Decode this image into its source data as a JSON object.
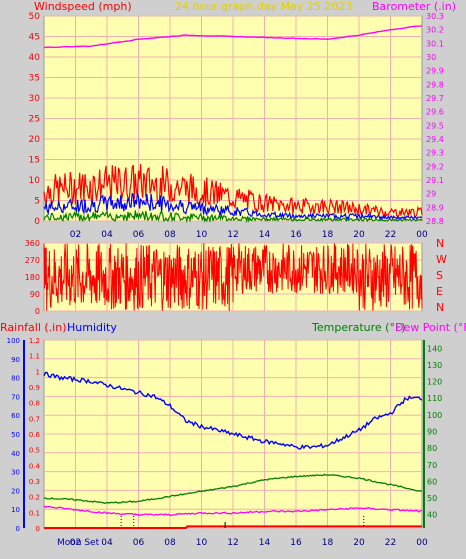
{
  "header": {
    "left_title": "Windspeed (mph)",
    "center_title": "24 hour graph day   May 25 2023",
    "right_title": "Barometer (.in)"
  },
  "bottom_header": {
    "left_title": "Rainfall (.in)",
    "humidity_title": "Humidity",
    "temp_title": "Temperature (°F)",
    "dew_title": "Dew Point (°F)"
  },
  "x_ticks": [
    "02",
    "04",
    "06",
    "08",
    "10",
    "12",
    "14",
    "16",
    "18",
    "20",
    "22",
    "00"
  ],
  "wind_dir_labels": [
    "N",
    "W",
    "S",
    "E",
    "N"
  ],
  "moon_label": "Moon Set",
  "colors": {
    "plot_bg": "#ffffb0",
    "frame_bg": "#cfcfcf",
    "wind_gust": "#ff0000",
    "wind_avg": "#0000ff",
    "wind_low": "#008000",
    "barometer": "#ff00ff",
    "wind_dir": "#ff0000",
    "humidity": "#0000ff",
    "temperature": "#008000",
    "dewpoint": "#ff00ff",
    "rain": "#ff0000",
    "grid": "#f0b0b0"
  },
  "chart_data": [
    {
      "type": "line",
      "title": "24 hour graph day   May 25 2023",
      "series_names": [
        "Windspeed (mph)",
        "Barometer (.in)"
      ],
      "x_range_hours": [
        0,
        24
      ],
      "y_left": {
        "label": "Windspeed (mph)",
        "ticks": [
          0,
          5,
          10,
          15,
          20,
          25,
          30,
          35,
          40,
          45,
          50
        ],
        "range": [
          0,
          50
        ]
      },
      "y_right": {
        "label": "Barometer (.in)",
        "ticks": [
          "28.8",
          "28.9",
          "29",
          "29.1",
          "29.2",
          "29.3",
          "29.4",
          "29.5",
          "29.6",
          "29.7",
          "29.8",
          "29.9",
          "30",
          "30.1",
          "30.2",
          "30.3"
        ],
        "range": [
          28.8,
          30.3
        ]
      },
      "barometer": {
        "x": [
          0,
          3,
          6,
          9,
          12,
          15,
          18,
          20,
          22,
          24
        ],
        "y": [
          30.07,
          30.08,
          30.13,
          30.16,
          30.15,
          30.14,
          30.13,
          30.16,
          30.2,
          30.23
        ]
      },
      "gust_envelope": {
        "x": [
          0,
          3,
          6,
          8,
          10,
          12,
          14,
          16,
          18,
          20,
          22,
          24
        ],
        "y": [
          10,
          12,
          13,
          12,
          10,
          8,
          6,
          5,
          5,
          4,
          3,
          3
        ]
      },
      "avg_envelope": {
        "x": [
          0,
          3,
          6,
          8,
          10,
          12,
          14,
          16,
          18,
          20,
          22,
          24
        ],
        "y": [
          4,
          5,
          6,
          5,
          4,
          3,
          2,
          1.5,
          1.5,
          1.5,
          1,
          1
        ]
      }
    },
    {
      "type": "line",
      "title": "",
      "series_names": [],
      "y_left": {
        "ticks": [
          0,
          90,
          180,
          270,
          360
        ],
        "range": [
          0,
          360
        ]
      },
      "direction_ranges": [
        {
          "from": 0,
          "to": 12,
          "low": 0,
          "high": 360
        },
        {
          "from": 12,
          "to": 20,
          "low": 90,
          "high": 360
        },
        {
          "from": 20,
          "to": 24,
          "low": 0,
          "high": 360
        }
      ]
    },
    {
      "type": "line",
      "title": "",
      "series_names": [
        "Humidity",
        "Temperature (°F)",
        "Dew Point (°F)",
        "Rainfall (.in)"
      ],
      "y_humidity": {
        "ticks": [
          0,
          10,
          20,
          30,
          40,
          50,
          60,
          70,
          80,
          90,
          100
        ],
        "range": [
          0,
          100
        ]
      },
      "y_rain": {
        "ticks": [
          "0",
          "0.1",
          "0.2",
          "0.3",
          "0.4",
          "0.5",
          "0.6",
          "0.7",
          "0.8",
          "0.9",
          "1",
          "1.1",
          "1.2"
        ],
        "range": [
          0,
          1.2
        ]
      },
      "y_temp": {
        "ticks": [
          40,
          50,
          60,
          70,
          80,
          90,
          100,
          110,
          120,
          130,
          140
        ],
        "range": [
          32,
          145
        ]
      },
      "humidity": {
        "x": [
          0,
          1,
          2,
          3,
          4,
          5,
          6,
          7,
          8,
          9,
          10,
          11,
          12,
          13,
          14,
          15,
          16,
          17,
          18,
          19,
          20,
          21,
          22,
          23,
          24
        ],
        "y": [
          82,
          80,
          79,
          78,
          76,
          74,
          72,
          70,
          65,
          57,
          54,
          52,
          50,
          48,
          46,
          45,
          43,
          43,
          44,
          48,
          52,
          58,
          61,
          69,
          69
        ]
      },
      "temperature": {
        "x": [
          0,
          2,
          4,
          6,
          8,
          10,
          12,
          14,
          16,
          18,
          20,
          22,
          24
        ],
        "y": [
          50,
          49,
          47,
          48,
          51,
          54,
          57,
          61,
          63,
          64,
          62,
          58,
          54
        ]
      },
      "dewpoint": {
        "x": [
          0,
          2,
          4,
          6,
          8,
          10,
          12,
          14,
          16,
          18,
          20,
          22,
          24
        ],
        "y": [
          45,
          43,
          41,
          40,
          40,
          41,
          41,
          42,
          42,
          43,
          44,
          43,
          42
        ]
      },
      "rainfall": {
        "x": [
          0,
          9,
          9.1,
          24
        ],
        "y": [
          0,
          0,
          0.01,
          0.01
        ]
      }
    }
  ]
}
